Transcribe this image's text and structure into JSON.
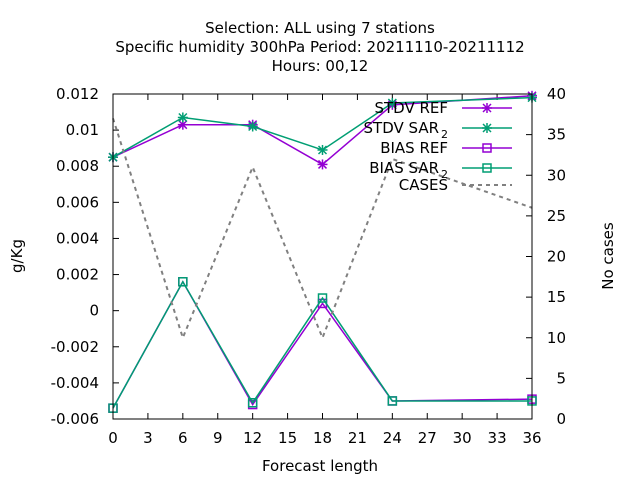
{
  "chart_data": {
    "type": "line",
    "title_lines": [
      "Selection: ALL using     7 stations",
      "Specific humidity 300hPa   Period: 20211110-20211112",
      "Hours:  00,12"
    ],
    "xlabel": "Forecast length",
    "ylabel": "g/Kg",
    "y2label": "No cases",
    "xlim": [
      0,
      36
    ],
    "ylim": [
      -0.006,
      0.012
    ],
    "y2lim": [
      0,
      40
    ],
    "xticks": [
      0,
      3,
      6,
      9,
      12,
      15,
      18,
      21,
      24,
      27,
      30,
      33,
      36
    ],
    "yticks": [
      "-0.006",
      "-0.004",
      "-0.002",
      "0",
      "0.002",
      "0.004",
      "0.006",
      "0.008",
      "0.01",
      "0.012"
    ],
    "y2ticks": [
      "0",
      "5",
      "10",
      "15",
      "20",
      "25",
      "30",
      "35",
      "40"
    ],
    "grid": false,
    "legend_position": "top-right",
    "x": [
      0,
      6,
      12,
      18,
      24,
      36
    ],
    "series": [
      {
        "name": "STDV REF",
        "legend_sub": "",
        "color": "#9400d3",
        "marker": "star",
        "axis": "y1",
        "values": [
          0.0085,
          0.0103,
          0.0103,
          0.0081,
          0.0114,
          0.0119
        ]
      },
      {
        "name": "STDV SAR",
        "legend_sub": "2",
        "color": "#009e73",
        "marker": "star",
        "axis": "y1",
        "values": [
          0.0085,
          0.0107,
          0.0102,
          0.0089,
          0.0115,
          0.0118
        ]
      },
      {
        "name": "BIAS REF",
        "legend_sub": "",
        "color": "#9400d3",
        "marker": "square",
        "axis": "y1",
        "values": [
          -0.0054,
          0.0016,
          -0.0052,
          0.0004,
          -0.005,
          -0.0049
        ]
      },
      {
        "name": "BIAS SAR",
        "legend_sub": "2",
        "color": "#009e73",
        "marker": "square",
        "axis": "y1",
        "values": [
          -0.0054,
          0.0016,
          -0.0051,
          0.0007,
          -0.005,
          -0.005
        ]
      },
      {
        "name": "CASES",
        "legend_sub": "",
        "color": "#808080",
        "marker": "none",
        "dashed": true,
        "axis": "y2",
        "values": [
          37,
          10,
          31,
          10,
          32,
          26
        ]
      }
    ]
  }
}
